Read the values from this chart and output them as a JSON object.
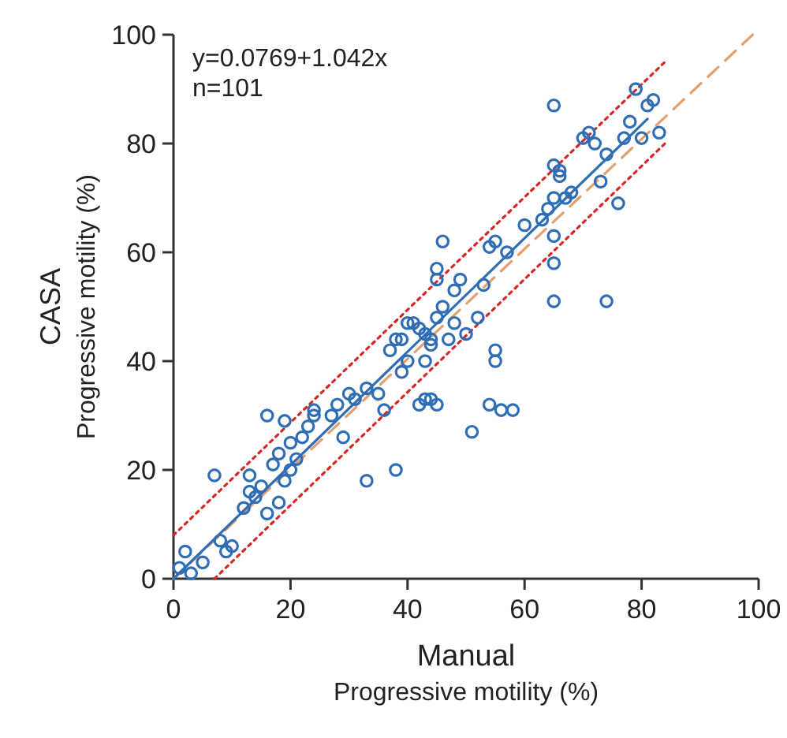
{
  "chart_data": {
    "type": "scatter",
    "xlabel": "Manual\nProgressive motility (%)",
    "ylabel": "CASA\nProgressive motility (%)",
    "annotations": [
      "y=0.0769+1.042x",
      "n=101"
    ],
    "xlim": [
      0,
      100
    ],
    "ylim": [
      0,
      100
    ],
    "xticks": [
      0,
      20,
      40,
      60,
      80,
      100
    ],
    "yticks": [
      0,
      20,
      40,
      60,
      80,
      100
    ],
    "grid": false,
    "series": [
      {
        "type": "line",
        "color": "#e0a070",
        "line_style": "dashed",
        "x": [
          0,
          99
        ],
        "values": [
          0,
          100
        ]
      },
      {
        "type": "line",
        "color": "#d62728",
        "line_style": "dotted",
        "x": [
          0,
          84
        ],
        "values": [
          8,
          95
        ]
      },
      {
        "type": "line",
        "color": "#d62728",
        "line_style": "dotted",
        "x": [
          7,
          84
        ],
        "values": [
          0,
          80
        ]
      },
      {
        "type": "line",
        "color": "#2f6db5",
        "line_style": "solid",
        "x": [
          0,
          81
        ],
        "values": [
          0,
          84.5
        ]
      },
      {
        "color": "#2f6db5",
        "marker": "circle",
        "x": [
          1,
          2,
          3,
          5,
          7,
          8,
          9,
          10,
          13,
          13,
          14,
          15,
          16,
          16,
          17,
          18,
          18,
          19,
          19,
          20,
          20,
          21,
          22,
          23,
          24,
          24,
          27,
          28,
          29,
          30,
          31,
          33,
          33,
          35,
          36,
          37,
          38,
          38,
          39,
          40,
          40,
          41,
          42,
          42,
          43,
          43,
          43,
          44,
          44,
          44,
          45,
          45,
          45,
          46,
          45,
          46,
          47,
          48,
          49,
          50,
          51,
          52,
          53,
          54,
          54,
          55,
          55,
          56,
          57,
          58,
          63,
          64,
          65,
          65,
          65,
          65,
          65,
          66,
          66,
          67,
          68,
          70,
          71,
          72,
          73,
          74,
          74,
          76,
          77,
          78,
          79,
          80,
          81,
          82,
          83,
          65,
          55,
          48,
          60,
          39,
          12
        ],
        "values": [
          2,
          5,
          1,
          3,
          19,
          7,
          5,
          6,
          19,
          16,
          15,
          17,
          30,
          12,
          21,
          23,
          14,
          29,
          18,
          20,
          25,
          22,
          26,
          28,
          30,
          31,
          30,
          32,
          26,
          34,
          33,
          35,
          18,
          34,
          31,
          42,
          20,
          44,
          44,
          47,
          40,
          47,
          46,
          32,
          45,
          33,
          40,
          43,
          33,
          44,
          48,
          55,
          57,
          62,
          32,
          50,
          44,
          47,
          55,
          45,
          27,
          48,
          54,
          61,
          32,
          42,
          40,
          31,
          60,
          31,
          66,
          68,
          70,
          58,
          63,
          51,
          87,
          75,
          74,
          70,
          71,
          81,
          82,
          80,
          73,
          51,
          78,
          69,
          81,
          84,
          90,
          81,
          87,
          88,
          82,
          76,
          62,
          53,
          65,
          38,
          13
        ]
      }
    ]
  }
}
